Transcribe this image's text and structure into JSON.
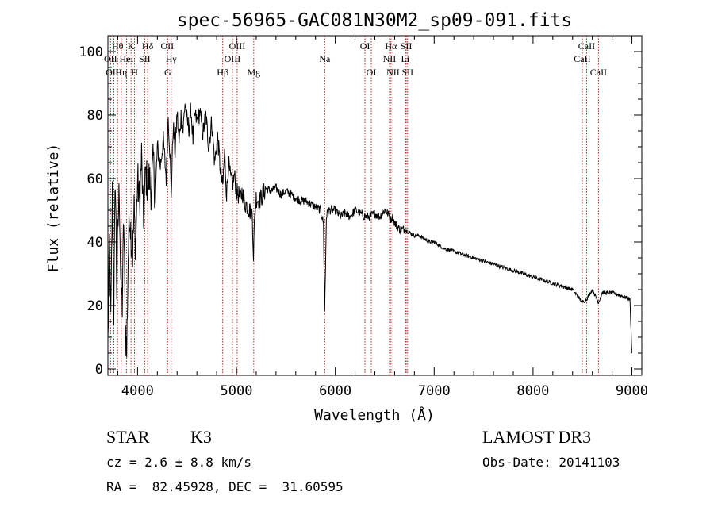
{
  "chart_data": {
    "type": "line",
    "title": "spec-56965-GAC081N30M2_sp09-091.fits",
    "xlabel": "Wavelength (Å)",
    "ylabel": "Flux (relative)",
    "xlim": [
      3700,
      9100
    ],
    "ylim": [
      -2,
      105
    ],
    "xticks": [
      4000,
      5000,
      6000,
      7000,
      8000,
      9000
    ],
    "yticks": [
      0,
      20,
      40,
      60,
      80,
      100
    ],
    "xtick_labels": [
      "4000",
      "5000",
      "6000",
      "7000",
      "8000",
      "9000"
    ],
    "ytick_labels": [
      "0",
      "20",
      "40",
      "60",
      "80",
      "100"
    ],
    "xminor_step": 200,
    "yminor_step": 5,
    "line_color": "#000000",
    "line_marker_color": "#b22222",
    "series": [
      {
        "name": "flux",
        "x": [
          3700,
          3715,
          3730,
          3745,
          3760,
          3775,
          3790,
          3800,
          3815,
          3830,
          3845,
          3860,
          3875,
          3890,
          3905,
          3920,
          3935,
          3950,
          3965,
          3980,
          4000,
          4020,
          4040,
          4060,
          4080,
          4100,
          4120,
          4140,
          4160,
          4180,
          4200,
          4230,
          4260,
          4290,
          4310,
          4330,
          4340,
          4360,
          4380,
          4400,
          4420,
          4440,
          4460,
          4480,
          4500,
          4520,
          4540,
          4560,
          4580,
          4600,
          4630,
          4660,
          4690,
          4720,
          4750,
          4780,
          4810,
          4840,
          4861,
          4880,
          4900,
          4920,
          4940,
          4960,
          4980,
          5000,
          5020,
          5040,
          5060,
          5080,
          5100,
          5130,
          5160,
          5172,
          5185,
          5200,
          5230,
          5270,
          5300,
          5350,
          5400,
          5450,
          5500,
          5550,
          5600,
          5650,
          5700,
          5750,
          5800,
          5850,
          5880,
          5893,
          5900,
          5910,
          5930,
          5960,
          6000,
          6050,
          6100,
          6150,
          6200,
          6250,
          6300,
          6350,
          6400,
          6450,
          6500,
          6530,
          6550,
          6563,
          6575,
          6600,
          6650,
          6700,
          6750,
          6800,
          6850,
          6900,
          6950,
          7000,
          7100,
          7200,
          7300,
          7400,
          7500,
          7600,
          7700,
          7800,
          7900,
          8000,
          8100,
          8200,
          8300,
          8400,
          8498,
          8542,
          8600,
          8662,
          8700,
          8800,
          8900,
          8980,
          9000
        ],
        "y": [
          8,
          40,
          15,
          55,
          18,
          62,
          25,
          42,
          58,
          28,
          20,
          48,
          15,
          5,
          35,
          50,
          42,
          36,
          50,
          38,
          60,
          52,
          67,
          45,
          62,
          58,
          60,
          56,
          66,
          52,
          70,
          64,
          72,
          60,
          80,
          66,
          55,
          77,
          68,
          81,
          71,
          80,
          75,
          84,
          78,
          76,
          82,
          72,
          80,
          78,
          81,
          74,
          80,
          70,
          78,
          65,
          73,
          62,
          57,
          68,
          55,
          65,
          60,
          58,
          61,
          56,
          55,
          54,
          56,
          52,
          52,
          50,
          49,
          36,
          48,
          54,
          53,
          55,
          57,
          56,
          57,
          55,
          56,
          55,
          54,
          53,
          53,
          52,
          51,
          50,
          46,
          18,
          30,
          48,
          50,
          50,
          50,
          48,
          49,
          48,
          50,
          49,
          48,
          48,
          49,
          48,
          50,
          49,
          48,
          47,
          48,
          46,
          44,
          44,
          43,
          42,
          42,
          41,
          40,
          40,
          38,
          37,
          36,
          35,
          34,
          33,
          32,
          31,
          30,
          29,
          28,
          27,
          26,
          25,
          21,
          22,
          25,
          21,
          24,
          24,
          23,
          22,
          5
        ]
      }
    ],
    "spectral_lines": [
      {
        "label": "Hθ",
        "x": 3798,
        "row": 1
      },
      {
        "label": "OII",
        "x": 3727,
        "row": 2
      },
      {
        "label": "OIII",
        "x": 3760,
        "row": 3
      },
      {
        "label": "K",
        "x": 3934,
        "row": 1
      },
      {
        "label": "HeI",
        "x": 3889,
        "row": 2
      },
      {
        "label": "Hη",
        "x": 3835,
        "row": 3
      },
      {
        "label": "SII",
        "x": 4072,
        "row": 2
      },
      {
        "label": "H",
        "x": 3969,
        "row": 3
      },
      {
        "label": "Hδ",
        "x": 4102,
        "row": 1
      },
      {
        "label": "OII",
        "x": 4300,
        "row": 1
      },
      {
        "label": "Hγ",
        "x": 4340,
        "row": 2
      },
      {
        "label": "G",
        "x": 4304,
        "row": 3
      },
      {
        "label": "OIII",
        "x": 5007,
        "row": 1
      },
      {
        "label": "OIII",
        "x": 4959,
        "row": 2
      },
      {
        "label": "Hβ",
        "x": 4861,
        "row": 3
      },
      {
        "label": "Mg",
        "x": 5175,
        "row": 3
      },
      {
        "label": "Na",
        "x": 5893,
        "row": 2
      },
      {
        "label": "OI",
        "x": 6300,
        "row": 1
      },
      {
        "label": "OI",
        "x": 6364,
        "row": 3
      },
      {
        "label": "Hα",
        "x": 6563,
        "row": 1
      },
      {
        "label": "NII",
        "x": 6548,
        "row": 2
      },
      {
        "label": "NII",
        "x": 6584,
        "row": 3
      },
      {
        "label": "SII",
        "x": 6717,
        "row": 1
      },
      {
        "label": "Li",
        "x": 6708,
        "row": 2
      },
      {
        "label": "SII",
        "x": 6731,
        "row": 3
      },
      {
        "label": "CaII",
        "x": 8542,
        "row": 1
      },
      {
        "label": "CaII",
        "x": 8498,
        "row": 2
      },
      {
        "label": "CaII",
        "x": 8662,
        "row": 3
      }
    ]
  },
  "info": {
    "object_class": "STAR",
    "subclass": "K3",
    "survey": "LAMOST DR3",
    "redshift": "cz = 2.6 ± 8.8 km/s",
    "obs_date": "Obs-Date: 20141103",
    "coords": "RA =  82.45928, DEC =  31.60595"
  }
}
